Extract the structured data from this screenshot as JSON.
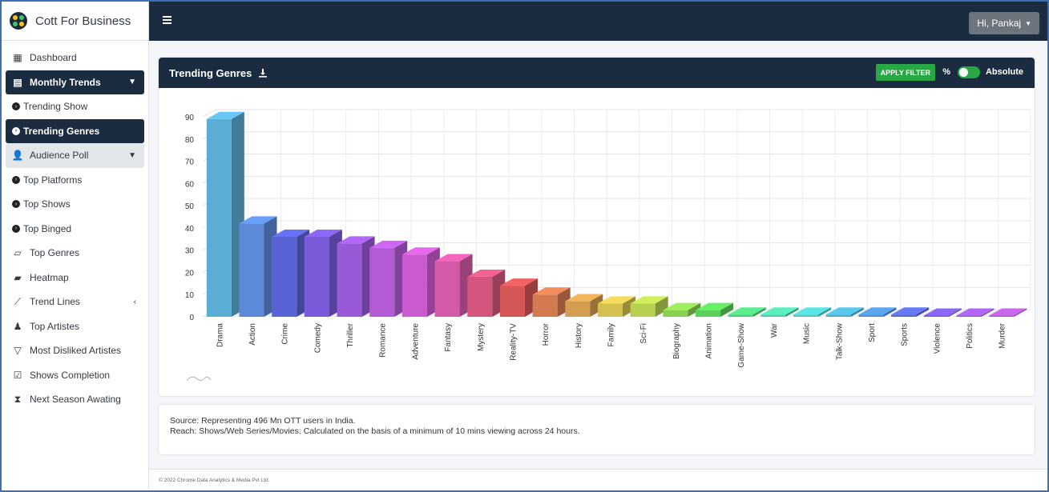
{
  "brand": {
    "name": "Cott For Business"
  },
  "header": {
    "user_label": "Hi, Pankaj"
  },
  "sidebar": {
    "items": [
      {
        "label": "Dashboard",
        "icon": "grid-icon"
      },
      {
        "label": "Monthly Trends",
        "icon": "calendar-icon"
      },
      {
        "label": "Trending Show",
        "icon": "circle-arrow-icon"
      },
      {
        "label": "Trending Genres",
        "icon": "circle-arrow-icon"
      },
      {
        "label": "Audience Poll",
        "icon": "user-check-icon"
      },
      {
        "label": "Top Platforms",
        "icon": "circle-arrow-icon"
      },
      {
        "label": "Top Shows",
        "icon": "circle-arrow-icon"
      },
      {
        "label": "Top Binged",
        "icon": "circle-arrow-icon"
      },
      {
        "label": "Top Genres",
        "icon": "map-icon"
      },
      {
        "label": "Heatmap",
        "icon": "map-filled-icon"
      },
      {
        "label": "Trend Lines",
        "icon": "line-chart-icon"
      },
      {
        "label": "Top Artistes",
        "icon": "user-tie-icon"
      },
      {
        "label": "Most Disliked Artistes",
        "icon": "thumbs-down-icon"
      },
      {
        "label": "Shows Completion",
        "icon": "check-square-icon"
      },
      {
        "label": "Next Season Awating",
        "icon": "hourglass-icon"
      }
    ]
  },
  "card": {
    "title": "Trending Genres",
    "apply_filter": "APPLY FILTER",
    "percent_label": "%",
    "absolute_label": "Absolute"
  },
  "notes": {
    "source": "Source: Representing 496 Mn OTT users in India.",
    "reach": "Reach: Shows/Web Series/Movies: Calculated on the basis of a minimum of 10 mins viewing across 24 hours."
  },
  "footer": {
    "text": "© 2022 Chrome Data Analytics & Media Pvt Ltd."
  },
  "colors": {
    "navy": "#1b2b40",
    "green": "#28a745"
  },
  "chart_data": {
    "type": "bar",
    "title": "",
    "ylim": [
      0,
      90
    ],
    "yticks": [
      0,
      10,
      20,
      30,
      40,
      50,
      60,
      70,
      80,
      90
    ],
    "categories": [
      "Drama",
      "Action",
      "Crime",
      "Comedy",
      "Thriller",
      "Romance",
      "Adventure",
      "Fantasy",
      "Mystery",
      "Reality-TV",
      "Horror",
      "History",
      "Family",
      "Sci-Fi",
      "Biography",
      "Animation",
      "Game-Show",
      "War",
      "Music",
      "Talk-Show",
      "Sport",
      "Sports",
      "Violence",
      "Politics",
      "Murder"
    ],
    "values": [
      89,
      42,
      36,
      36,
      33,
      31,
      28,
      25,
      18,
      14,
      10,
      7,
      6,
      6,
      3,
      3,
      1,
      1,
      1,
      1,
      1,
      1,
      0.5,
      0.5,
      0.5
    ],
    "colors": [
      "#5aaed6",
      "#5c8ad8",
      "#5a63d6",
      "#7a5ad8",
      "#9a5ad8",
      "#b45ad6",
      "#c95ad0",
      "#d45aa8",
      "#d4567e",
      "#d45656",
      "#d47a50",
      "#d49e50",
      "#d4c050",
      "#b8d050",
      "#8ad050",
      "#5ad05a",
      "#50d07e",
      "#50d0a8",
      "#50c8c8",
      "#50aed0",
      "#5090d0",
      "#5a6ad4",
      "#7a5ad4",
      "#9a5ad4",
      "#b05ad0"
    ],
    "grid": true,
    "legend": "none"
  }
}
